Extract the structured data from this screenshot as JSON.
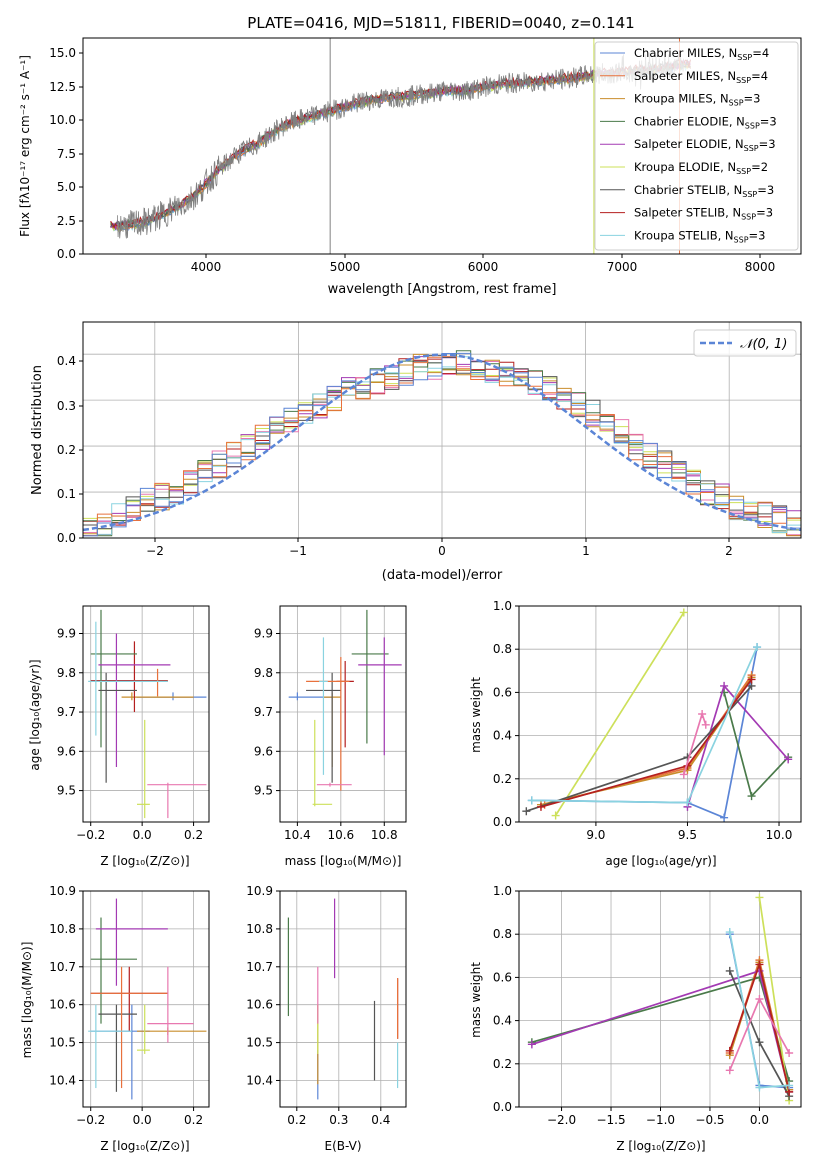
{
  "colors": {
    "s0": "#5b85d6",
    "s1": "#e8713c",
    "s2": "#c98d2c",
    "s3": "#4a7a4a",
    "s4": "#a33ab3",
    "s5": "#cde05a",
    "s6": "#555555",
    "s7": "#b41f1f",
    "s8": "#8ad3e0",
    "pink": "#e878b0",
    "gray": "#808080"
  },
  "panels": {
    "spectrum": {
      "title": "PLATE=0416, MJD=51811, FIBERID=0040, z=0.141",
      "xlabel": "wavelength [Angstrom, rest frame]",
      "ylabel": "Flux [fλ10⁻¹⁷ erg cm⁻² s⁻¹ A⁻¹]",
      "xticks": [
        "4000",
        "5000",
        "6000",
        "7000",
        "8000"
      ],
      "yticks": [
        "0.0",
        "2.5",
        "5.0",
        "7.5",
        "10.0",
        "12.5",
        "15.0"
      ],
      "legend": [
        {
          "pre": "Chabrier MILES, N",
          "sub": "SSP",
          "post": "=4"
        },
        {
          "pre": "Salpeter MILES, N",
          "sub": "SSP",
          "post": "=4"
        },
        {
          "pre": "Kroupa MILES, N",
          "sub": "SSP",
          "post": "=3"
        },
        {
          "pre": "Chabrier ELODIE, N",
          "sub": "SSP",
          "post": "=3"
        },
        {
          "pre": "Salpeter ELODIE, N",
          "sub": "SSP",
          "post": "=3"
        },
        {
          "pre": "Kroupa ELODIE, N",
          "sub": "SSP",
          "post": "=2"
        },
        {
          "pre": "Chabrier STELIB, N",
          "sub": "SSP",
          "post": "=3"
        },
        {
          "pre": "Salpeter STELIB, N",
          "sub": "SSP",
          "post": "=3"
        },
        {
          "pre": "Kroupa STELIB, N",
          "sub": "SSP",
          "post": "=3"
        }
      ]
    },
    "residuals": {
      "xlabel": "(data-model)/error",
      "ylabel": "Normed distribution",
      "legend": "𝒩(0, 1)",
      "xticks": [
        "−2",
        "−1",
        "0",
        "1",
        "2"
      ],
      "yticks": [
        "0.0",
        "0.1",
        "0.2",
        "0.3",
        "0.4"
      ]
    },
    "age_vs_z": {
      "xlabel": "Z [log₁₀(Z/Z⊙)]",
      "ylabel": "age  [log₁₀(age/yr)]",
      "xticks": [
        "−0.2",
        "0.0",
        "0.2"
      ],
      "yticks": [
        "9.5",
        "9.6",
        "9.7",
        "9.8",
        "9.9"
      ]
    },
    "age_vs_mass": {
      "xlabel": "mass [log₁₀(M/M⊙)]",
      "xticks": [
        "10.4",
        "10.6",
        "10.8"
      ],
      "yticks": [
        "9.5",
        "9.6",
        "9.7",
        "9.8",
        "9.9"
      ]
    },
    "weight_vs_age": {
      "xlabel": "age  [log₁₀(age/yr)]",
      "ylabel": "mass weight",
      "xticks": [
        "9.0",
        "9.5",
        "10.0"
      ],
      "yticks": [
        "0.0",
        "0.2",
        "0.4",
        "0.6",
        "0.8",
        "1.0"
      ]
    },
    "mass_vs_z": {
      "xlabel": "Z [log₁₀(Z/Z⊙)]",
      "ylabel": "mass [log₁₀(M/M⊙)]",
      "xticks": [
        "−0.2",
        "0.0",
        "0.2"
      ],
      "yticks": [
        "10.4",
        "10.5",
        "10.6",
        "10.7",
        "10.8",
        "10.9"
      ]
    },
    "mass_vs_ebv": {
      "xlabel": "E(B-V)",
      "xticks": [
        "0.2",
        "0.3",
        "0.4"
      ],
      "yticks": [
        "10.4",
        "10.5",
        "10.6",
        "10.7",
        "10.8",
        "10.9"
      ]
    },
    "weight_vs_z": {
      "xlabel": "Z [log₁₀(Z/Z⊙)]",
      "ylabel": "mass weight",
      "xticks": [
        "−2.0",
        "−1.5",
        "−1.0",
        "−0.5",
        "0.0"
      ],
      "yticks": [
        "0.0",
        "0.2",
        "0.4",
        "0.6",
        "0.8",
        "1.0"
      ]
    }
  },
  "chart_data": [
    {
      "type": "line",
      "title": "PLATE=0416, MJD=51811, FIBERID=0040, z=0.141",
      "xlabel": "wavelength [Angstrom, rest frame]",
      "xlim": [
        3100,
        8300
      ],
      "ylim": [
        0,
        16.2
      ],
      "spectrum": {
        "x": [
          3350,
          3450,
          3550,
          3650,
          3750,
          3850,
          3950,
          4050,
          4150,
          4250,
          4350,
          4450,
          4550,
          4650,
          4750,
          4850,
          4950,
          5050,
          5150,
          5250,
          5350,
          5450,
          5550,
          5650,
          5750,
          5850,
          5950,
          6050,
          6150,
          6250,
          6350,
          6450,
          6550,
          6650,
          6750,
          6850,
          6950,
          7050,
          7150,
          7250,
          7350,
          7450
        ],
        "y": [
          2.1,
          2.2,
          2.4,
          2.8,
          3.4,
          3.9,
          4.8,
          6.0,
          6.9,
          7.7,
          8.2,
          8.9,
          9.6,
          10.0,
          10.3,
          10.6,
          10.9,
          11.2,
          11.5,
          11.6,
          11.8,
          11.8,
          12.0,
          12.1,
          12.3,
          12.2,
          12.4,
          12.6,
          12.8,
          12.8,
          12.9,
          13.0,
          13.1,
          13.2,
          13.4,
          13.5,
          13.6,
          13.7,
          13.8,
          13.9,
          14.0,
          14.2
        ]
      },
      "vertical_lines": [
        4890,
        6800,
        7420
      ],
      "series": [
        "Chabrier MILES",
        "Salpeter MILES",
        "Kroupa MILES",
        "Chabrier ELODIE",
        "Salpeter ELODIE",
        "Kroupa ELODIE",
        "Chabrier STELIB",
        "Salpeter STELIB",
        "Kroupa STELIB"
      ]
    },
    {
      "type": "line",
      "xlabel": "(data-model)/error",
      "ylabel": "Normed distribution",
      "xlim": [
        -2.5,
        2.5
      ],
      "ylim": [
        0,
        0.47
      ],
      "bin_start": -2.5,
      "bin_width": 0.1,
      "hist_base": [
        0.02,
        0.03,
        0.05,
        0.06,
        0.08,
        0.09,
        0.1,
        0.12,
        0.14,
        0.16,
        0.18,
        0.2,
        0.22,
        0.24,
        0.26,
        0.27,
        0.29,
        0.3,
        0.32,
        0.33,
        0.34,
        0.35,
        0.36,
        0.37,
        0.37,
        0.38,
        0.38,
        0.37,
        0.36,
        0.36,
        0.35,
        0.34,
        0.33,
        0.31,
        0.29,
        0.27,
        0.25,
        0.23,
        0.2,
        0.18,
        0.16,
        0.14,
        0.12,
        0.1,
        0.09,
        0.07,
        0.06,
        0.05,
        0.04,
        0.03
      ],
      "gaussian": {
        "name": "𝒩(0, 1)",
        "mu": 0,
        "sigma": 1
      }
    },
    {
      "type": "scatter",
      "xlabel": "Z [log₁₀(Z/Z⊙)]",
      "ylabel": "age  [log₁₀(age/yr)]",
      "xlim": [
        -0.23,
        0.26
      ],
      "ylim": [
        9.42,
        9.97
      ],
      "points": [
        {
          "x": 0.12,
          "y": 9.738,
          "xlo": -0.02,
          "xhi": 0.25,
          "ylo": 9.73,
          "yhi": 9.75
        },
        {
          "x": -0.04,
          "y": 9.738,
          "xlo": -0.08,
          "xhi": 0.2,
          "ylo": 9.73,
          "yhi": 9.75
        },
        {
          "x": -0.03,
          "y": 9.78,
          "xlo": -0.2,
          "xhi": 0.1,
          "ylo": 9.7,
          "yhi": 9.88
        },
        {
          "x": -0.16,
          "y": 9.848,
          "xlo": -0.2,
          "xhi": -0.02,
          "ylo": 9.61,
          "yhi": 9.96
        },
        {
          "x": -0.1,
          "y": 9.82,
          "xlo": -0.17,
          "xhi": 0.11,
          "ylo": 9.56,
          "yhi": 9.9
        },
        {
          "x": 0.01,
          "y": 9.465,
          "xlo": -0.02,
          "xhi": 0.03,
          "ylo": 9.43,
          "yhi": 9.68
        },
        {
          "x": -0.14,
          "y": 9.755,
          "xlo": -0.17,
          "xhi": -0.02,
          "ylo": 9.52,
          "yhi": 9.8
        },
        {
          "x": 0.06,
          "y": 9.778,
          "xlo": -0.03,
          "xhi": 0.1,
          "ylo": 9.74,
          "yhi": 9.81
        },
        {
          "x": -0.18,
          "y": 9.778,
          "xlo": -0.21,
          "xhi": 0.1,
          "ylo": 9.64,
          "yhi": 9.93
        },
        {
          "x": 0.1,
          "y": 9.515,
          "xlo": 0.02,
          "xhi": 0.25,
          "ylo": 9.43,
          "yhi": 9.52
        }
      ]
    },
    {
      "type": "scatter",
      "xlabel": "mass [log₁₀(M/M⊙)]",
      "xlim": [
        10.32,
        10.9
      ],
      "ylim": [
        9.42,
        9.97
      ],
      "points": [
        {
          "x": 10.4,
          "y": 9.738,
          "xlo": 10.36,
          "xhi": 10.56,
          "ylo": 9.73,
          "yhi": 9.75
        },
        {
          "x": 10.56,
          "y": 9.738,
          "xlo": 10.52,
          "xhi": 10.6,
          "ylo": 9.56,
          "yhi": 9.75
        },
        {
          "x": 10.62,
          "y": 9.778,
          "xlo": 10.58,
          "xhi": 10.66,
          "ylo": 9.61,
          "yhi": 9.83
        },
        {
          "x": 10.72,
          "y": 9.848,
          "xlo": 10.65,
          "xhi": 10.82,
          "ylo": 9.62,
          "yhi": 9.96
        },
        {
          "x": 10.8,
          "y": 9.82,
          "xlo": 10.68,
          "xhi": 10.88,
          "ylo": 9.59,
          "yhi": 9.89
        },
        {
          "x": 10.48,
          "y": 9.465,
          "xlo": 10.47,
          "xhi": 10.56,
          "ylo": 9.46,
          "yhi": 9.68
        },
        {
          "x": 10.56,
          "y": 9.755,
          "xlo": 10.44,
          "xhi": 10.6,
          "ylo": 9.52,
          "yhi": 9.8
        },
        {
          "x": 10.6,
          "y": 9.778,
          "xlo": 10.44,
          "xhi": 10.64,
          "ylo": 9.5,
          "yhi": 9.84
        },
        {
          "x": 10.52,
          "y": 9.778,
          "xlo": 10.5,
          "xhi": 10.54,
          "ylo": 9.54,
          "yhi": 9.89
        },
        {
          "x": 10.55,
          "y": 9.515,
          "xlo": 10.49,
          "xhi": 10.65,
          "ylo": 9.51,
          "yhi": 9.52
        }
      ]
    },
    {
      "type": "line",
      "xlabel": "age  [log₁₀(age/yr)]",
      "ylabel": "mass weight",
      "xlim": [
        8.58,
        10.12
      ],
      "ylim": [
        0,
        1
      ],
      "series": [
        {
          "key": "s0",
          "x": [
            8.65,
            9.5,
            9.7,
            9.88
          ],
          "y": [
            0.1,
            0.09,
            0.02,
            0.81
          ]
        },
        {
          "key": "s1",
          "x": [
            8.72,
            9.5,
            9.85
          ],
          "y": [
            0.08,
            0.25,
            0.68
          ]
        },
        {
          "key": "s2",
          "x": [
            8.7,
            9.5,
            9.85
          ],
          "y": [
            0.08,
            0.24,
            0.67
          ]
        },
        {
          "key": "s3",
          "x": [
            9.7,
            9.85,
            10.05
          ],
          "y": [
            0.6,
            0.12,
            0.3
          ]
        },
        {
          "key": "s4",
          "x": [
            9.5,
            9.7,
            10.05
          ],
          "y": [
            0.07,
            0.63,
            0.29
          ]
        },
        {
          "key": "s5",
          "x": [
            8.78,
            9.48
          ],
          "y": [
            0.03,
            0.97
          ]
        },
        {
          "key": "s6",
          "x": [
            8.62,
            9.5,
            9.85
          ],
          "y": [
            0.05,
            0.3,
            0.63
          ]
        },
        {
          "key": "s7",
          "x": [
            8.7,
            9.5,
            9.85
          ],
          "y": [
            0.07,
            0.26,
            0.66
          ]
        },
        {
          "key": "s8",
          "x": [
            8.65,
            9.5,
            9.88
          ],
          "y": [
            0.1,
            0.09,
            0.81
          ]
        },
        {
          "key": "pink",
          "x": [
            9.48,
            9.58,
            9.6
          ],
          "y": [
            0.22,
            0.5,
            0.45
          ]
        }
      ]
    },
    {
      "type": "scatter",
      "xlabel": "Z [log₁₀(Z/Z⊙)]",
      "ylabel": "mass [log₁₀(M/M⊙)]",
      "xlim": [
        -0.23,
        0.26
      ],
      "ylim": [
        10.33,
        10.9
      ],
      "points": [
        {
          "x": -0.04,
          "y": 10.53,
          "xlo": -0.2,
          "xhi": 0.03,
          "ylo": 10.35,
          "yhi": 10.6
        },
        {
          "x": 0.1,
          "y": 10.53,
          "xlo": -0.02,
          "xhi": 0.25,
          "ylo": 10.52,
          "yhi": 10.54
        },
        {
          "x": -0.05,
          "y": 10.63,
          "xlo": -0.2,
          "xhi": 0.1,
          "ylo": 10.53,
          "yhi": 10.7
        },
        {
          "x": -0.16,
          "y": 10.72,
          "xlo": -0.2,
          "xhi": -0.02,
          "ylo": 10.55,
          "yhi": 10.83
        },
        {
          "x": -0.1,
          "y": 10.8,
          "xlo": -0.18,
          "xhi": 0.1,
          "ylo": 10.65,
          "yhi": 10.88
        },
        {
          "x": 0.01,
          "y": 10.48,
          "xlo": -0.02,
          "xhi": 0.03,
          "ylo": 10.47,
          "yhi": 10.6
        },
        {
          "x": -0.1,
          "y": 10.575,
          "xlo": -0.17,
          "xhi": -0.02,
          "ylo": 10.37,
          "yhi": 10.6
        },
        {
          "x": -0.08,
          "y": 10.63,
          "xlo": -0.2,
          "xhi": 0.1,
          "ylo": 10.38,
          "yhi": 10.7
        },
        {
          "x": -0.18,
          "y": 10.53,
          "xlo": -0.21,
          "xhi": -0.04,
          "ylo": 10.38,
          "yhi": 10.6
        },
        {
          "x": 0.1,
          "y": 10.55,
          "xlo": 0.02,
          "xhi": 0.2,
          "ylo": 10.5,
          "yhi": 10.7
        }
      ]
    },
    {
      "type": "scatter",
      "xlabel": "E(B-V)",
      "xlim": [
        0.16,
        0.46
      ],
      "ylim": [
        10.33,
        10.9
      ],
      "points": [
        {
          "x": 0.25,
          "y": 10.45,
          "ylo": 10.35,
          "yhi": 10.48
        },
        {
          "x": 0.25,
          "y": 10.5,
          "ylo": 10.39,
          "yhi": 10.6
        },
        {
          "x": 0.44,
          "y": 10.59,
          "ylo": 10.51,
          "yhi": 10.67
        },
        {
          "x": 0.18,
          "y": 10.7,
          "ylo": 10.57,
          "yhi": 10.83
        },
        {
          "x": 0.29,
          "y": 10.8,
          "ylo": 10.67,
          "yhi": 10.88
        },
        {
          "x": 0.25,
          "y": 10.55,
          "ylo": 10.47,
          "yhi": 10.6
        },
        {
          "x": 0.385,
          "y": 10.5,
          "ylo": 10.4,
          "yhi": 10.61
        },
        {
          "x": 0.44,
          "y": 10.6,
          "ylo": 10.51,
          "yhi": 10.67
        },
        {
          "x": 0.44,
          "y": 10.43,
          "ylo": 10.38,
          "yhi": 10.5
        },
        {
          "x": 0.25,
          "y": 10.62,
          "ylo": 10.55,
          "yhi": 10.7
        }
      ]
    },
    {
      "type": "line",
      "xlabel": "Z [log₁₀(Z/Z⊙)]",
      "ylabel": "mass weight",
      "xlim": [
        -2.43,
        0.42
      ],
      "ylim": [
        0,
        1
      ],
      "series": [
        {
          "key": "s0",
          "x": [
            -0.3,
            0.0,
            0.3
          ],
          "y": [
            0.8,
            0.1,
            0.09
          ]
        },
        {
          "key": "s1",
          "x": [
            -0.3,
            0.0,
            0.3
          ],
          "y": [
            0.25,
            0.68,
            0.08
          ]
        },
        {
          "key": "s2",
          "x": [
            -0.3,
            0.0,
            0.3
          ],
          "y": [
            0.24,
            0.67,
            0.08
          ]
        },
        {
          "key": "s3",
          "x": [
            -2.3,
            0.0,
            0.3
          ],
          "y": [
            0.3,
            0.6,
            0.12
          ]
        },
        {
          "key": "s4",
          "x": [
            -2.3,
            0.0,
            0.3
          ],
          "y": [
            0.29,
            0.63,
            0.07
          ]
        },
        {
          "key": "s5",
          "x": [
            0.0,
            0.3
          ],
          "y": [
            0.97,
            0.03
          ]
        },
        {
          "key": "s6",
          "x": [
            -0.3,
            0.0,
            0.3
          ],
          "y": [
            0.63,
            0.3,
            0.05
          ]
        },
        {
          "key": "s7",
          "x": [
            -0.3,
            0.0,
            0.3
          ],
          "y": [
            0.26,
            0.66,
            0.07
          ]
        },
        {
          "key": "s8",
          "x": [
            -0.3,
            0.0,
            0.3
          ],
          "y": [
            0.81,
            0.09,
            0.1
          ]
        },
        {
          "key": "pink",
          "x": [
            -0.3,
            0.0,
            0.3
          ],
          "y": [
            0.17,
            0.5,
            0.25
          ]
        }
      ]
    }
  ]
}
